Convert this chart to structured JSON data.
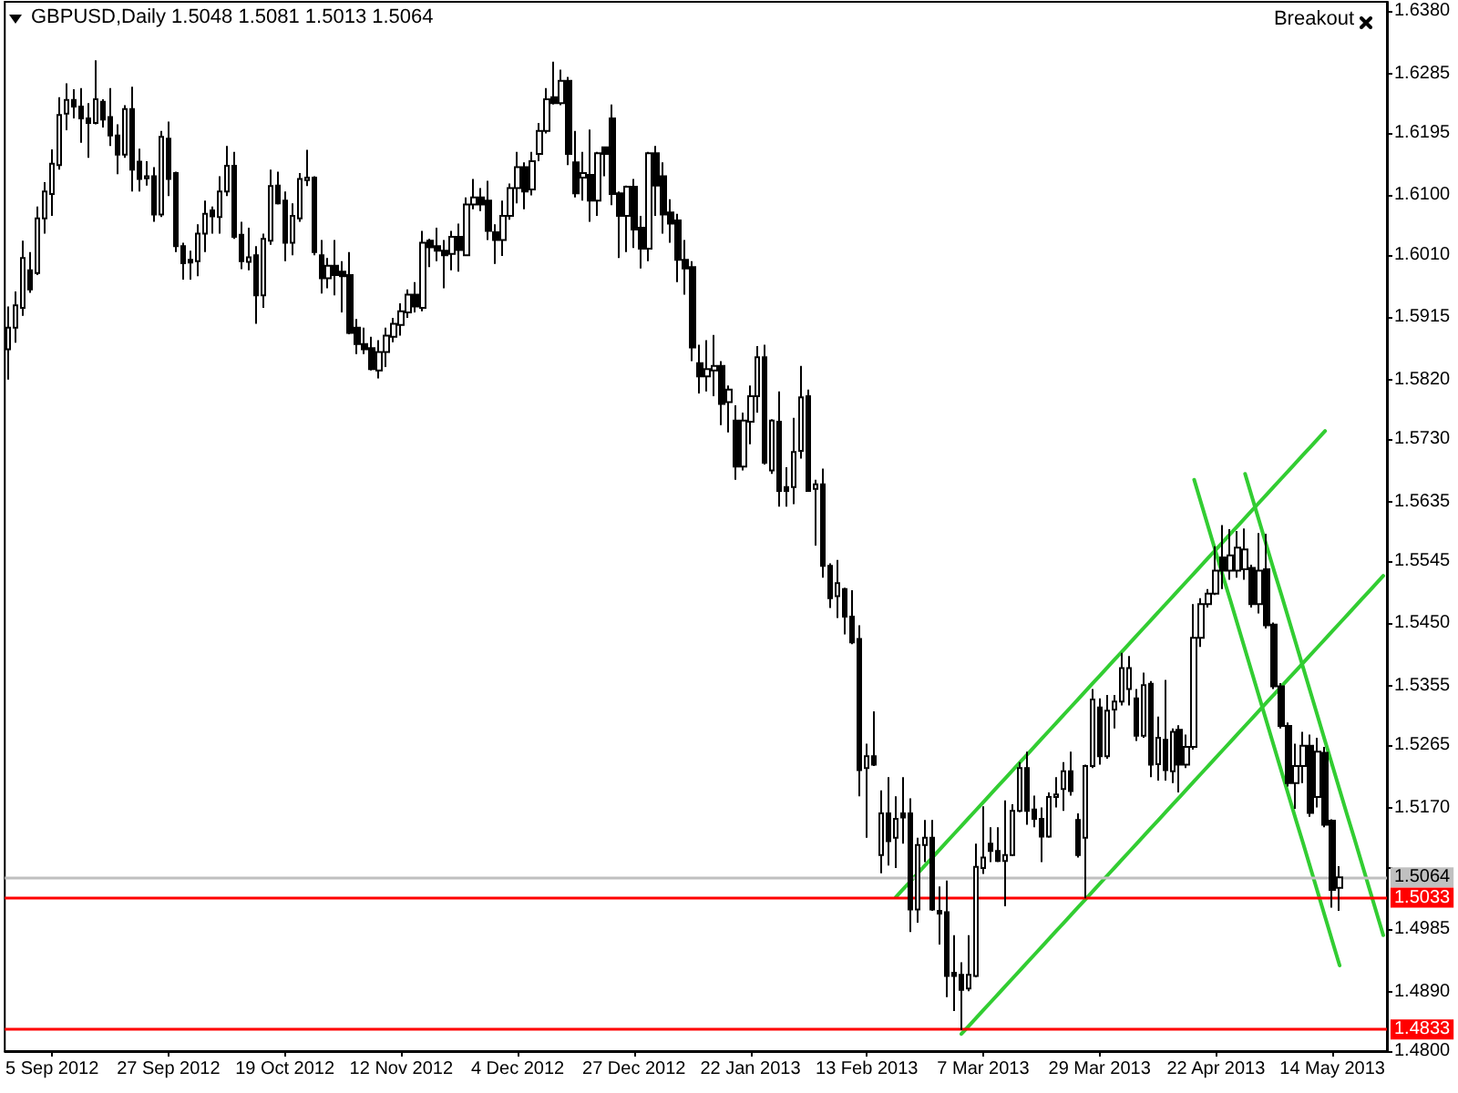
{
  "chart_data": {
    "type": "candlestick",
    "title": "GBPUSD,Daily 1.5048 1.5081 1.5013 1.5064",
    "annotations": [
      "Breakout"
    ],
    "categories": [
      null,
      null,
      null,
      null,
      null,
      null,
      "5 Sep 2012",
      null,
      null,
      null,
      null,
      null,
      null,
      null,
      null,
      null,
      null,
      null,
      null,
      null,
      null,
      null,
      "27 Sep 2012",
      null,
      null,
      null,
      null,
      null,
      null,
      null,
      null,
      null,
      null,
      null,
      null,
      null,
      null,
      null,
      "19 Oct 2012",
      null,
      null,
      null,
      null,
      null,
      null,
      null,
      null,
      null,
      null,
      null,
      null,
      null,
      null,
      null,
      "12 Nov 2012",
      null,
      null,
      null,
      null,
      null,
      null,
      null,
      null,
      null,
      null,
      null,
      null,
      null,
      null,
      null,
      "4 Dec 2012",
      null,
      null,
      null,
      null,
      null,
      null,
      null,
      null,
      null,
      null,
      null,
      null,
      null,
      null,
      null,
      "27 Dec 2012",
      null,
      null,
      null,
      null,
      null,
      null,
      null,
      null,
      null,
      null,
      null,
      null,
      null,
      null,
      null,
      "22 Jan 2013",
      null,
      null,
      null,
      null,
      null,
      null,
      null,
      null,
      null,
      null,
      null,
      null,
      null,
      null,
      null,
      "13 Feb 2013",
      null,
      null,
      null,
      null,
      null,
      null,
      null,
      null,
      null,
      null,
      null,
      null,
      null,
      null,
      null,
      "7 Mar 2013",
      null,
      null,
      null,
      null,
      null,
      null,
      null,
      null,
      null,
      null,
      null,
      null,
      null,
      null,
      null,
      "29 Mar 2013",
      null,
      null,
      null,
      null,
      null,
      null,
      null,
      null,
      null,
      null,
      null,
      null,
      null,
      null,
      null,
      "22 Apr 2013",
      null,
      null,
      null,
      null,
      null,
      null,
      null,
      null,
      null,
      null,
      null,
      null,
      null,
      null,
      null,
      "14 May 2013",
      null,
      null,
      null,
      null,
      null,
      null,
      null
    ],
    "series": [
      {
        "color": "#000000",
        "ohlc": [
          [
            1.5866,
            1.5931,
            1.582,
            1.5899
          ],
          [
            1.5899,
            1.5954,
            1.5876,
            1.5933
          ],
          [
            1.5929,
            1.6031,
            1.5917,
            1.6005
          ],
          [
            1.5986,
            1.6014,
            1.5952,
            1.5957
          ],
          [
            1.5982,
            1.6083,
            1.5979,
            1.6065
          ],
          [
            1.6065,
            1.612,
            1.6042,
            1.6106
          ],
          [
            1.6102,
            1.617,
            1.6069,
            1.6148
          ],
          [
            1.6146,
            1.6249,
            1.6139,
            1.6222
          ],
          [
            1.6224,
            1.627,
            1.6199,
            1.6245
          ],
          [
            1.6245,
            1.6261,
            1.6217,
            1.6235
          ],
          [
            1.6235,
            1.6263,
            1.618,
            1.6217
          ],
          [
            1.6217,
            1.624,
            1.6157,
            1.621
          ],
          [
            1.621,
            1.6305,
            1.6208,
            1.6246
          ],
          [
            1.6242,
            1.6246,
            1.6203,
            1.6215
          ],
          [
            1.6219,
            1.6263,
            1.6175,
            1.6191
          ],
          [
            1.6191,
            1.6208,
            1.6132,
            1.6162
          ],
          [
            1.6162,
            1.6237,
            1.6157,
            1.6231
          ],
          [
            1.6231,
            1.6265,
            1.6106,
            1.6139
          ],
          [
            1.6151,
            1.6171,
            1.6106,
            1.6125
          ],
          [
            1.6126,
            1.6152,
            1.6115,
            1.6129
          ],
          [
            1.6129,
            1.6143,
            1.606,
            1.6071
          ],
          [
            1.6071,
            1.6198,
            1.6067,
            1.6189
          ],
          [
            1.6186,
            1.6212,
            1.6099,
            1.6125
          ],
          [
            1.6134,
            1.6136,
            1.6014,
            1.6023
          ],
          [
            1.6023,
            1.6028,
            1.5972,
            1.5997
          ],
          [
            1.6002,
            1.6016,
            1.5972,
            1.5998
          ],
          [
            1.6,
            1.6056,
            1.5977,
            1.6042
          ],
          [
            1.6042,
            1.6092,
            1.6014,
            1.6072
          ],
          [
            1.6077,
            1.6083,
            1.6042,
            1.6068
          ],
          [
            1.6067,
            1.6129,
            1.6042,
            1.6106
          ],
          [
            1.6106,
            1.6175,
            1.6099,
            1.6145
          ],
          [
            1.6145,
            1.6166,
            1.6034,
            1.6037
          ],
          [
            1.604,
            1.606,
            1.5988,
            1.6
          ],
          [
            1.5999,
            1.6051,
            1.5986,
            1.6006
          ],
          [
            1.6009,
            1.6023,
            1.5905,
            1.5948
          ],
          [
            1.5948,
            1.6042,
            1.5929,
            1.6034
          ],
          [
            1.6031,
            1.6139,
            1.6025,
            1.6114
          ],
          [
            1.6115,
            1.6136,
            1.6086,
            1.6088
          ],
          [
            1.6092,
            1.6106,
            1.6,
            1.6028
          ],
          [
            1.6028,
            1.6088,
            1.6009,
            1.6069
          ],
          [
            1.6065,
            1.6134,
            1.606,
            1.6125
          ],
          [
            1.6123,
            1.6169,
            1.6114,
            1.6127
          ],
          [
            1.6127,
            1.6129,
            1.6009,
            1.6014
          ],
          [
            1.6009,
            1.6032,
            1.5951,
            1.5974
          ],
          [
            1.5974,
            1.6005,
            1.5959,
            1.5993
          ],
          [
            1.5993,
            1.6032,
            1.5948,
            1.5979
          ],
          [
            1.5984,
            1.6,
            1.5922,
            1.5977
          ],
          [
            1.5979,
            1.6014,
            1.5889,
            1.5891
          ],
          [
            1.5899,
            1.5912,
            1.5859,
            1.5874
          ],
          [
            1.5874,
            1.5899,
            1.5859,
            1.5866
          ],
          [
            1.5868,
            1.5885,
            1.5834,
            1.5836
          ],
          [
            1.5834,
            1.588,
            1.5822,
            1.5862
          ],
          [
            1.5862,
            1.5899,
            1.5839,
            1.5887
          ],
          [
            1.5885,
            1.5914,
            1.5877,
            1.5905
          ],
          [
            1.5903,
            1.5936,
            1.5887,
            1.5924
          ],
          [
            1.5922,
            1.5957,
            1.5914,
            1.5949
          ],
          [
            1.5949,
            1.5968,
            1.5922,
            1.5931
          ],
          [
            1.5929,
            1.6046,
            1.5924,
            1.6028
          ],
          [
            1.6031,
            1.6034,
            1.5991,
            1.6021
          ],
          [
            1.6023,
            1.6051,
            1.6,
            1.6016
          ],
          [
            1.6016,
            1.6032,
            1.5959,
            1.6009
          ],
          [
            1.6011,
            1.6046,
            1.5986,
            1.6037
          ],
          [
            1.6037,
            1.6057,
            1.5984,
            1.6017
          ],
          [
            1.6009,
            1.6097,
            1.6008,
            1.6086
          ],
          [
            1.6086,
            1.6125,
            1.6079,
            1.6097
          ],
          [
            1.6097,
            1.6111,
            1.6076,
            1.6086
          ],
          [
            1.6092,
            1.6122,
            1.6032,
            1.6046
          ],
          [
            1.6044,
            1.6056,
            1.5996,
            1.6032
          ],
          [
            1.6032,
            1.6092,
            1.6008,
            1.6069
          ],
          [
            1.6069,
            1.6118,
            1.6063,
            1.6111
          ],
          [
            1.6111,
            1.6166,
            1.6088,
            1.6143
          ],
          [
            1.6143,
            1.615,
            1.6079,
            1.6106
          ],
          [
            1.6109,
            1.6166,
            1.61,
            1.6152
          ],
          [
            1.6163,
            1.621,
            1.6152,
            1.6198
          ],
          [
            1.6198,
            1.6263,
            1.6194,
            1.6246
          ],
          [
            1.6249,
            1.6303,
            1.6238,
            1.624
          ],
          [
            1.624,
            1.6291,
            1.6237,
            1.6274
          ],
          [
            1.6274,
            1.628,
            1.6146,
            1.6163
          ],
          [
            1.615,
            1.6198,
            1.6097,
            1.6103
          ],
          [
            1.6127,
            1.6166,
            1.6092,
            1.6134
          ],
          [
            1.6131,
            1.62,
            1.606,
            1.6092
          ],
          [
            1.6092,
            1.6166,
            1.6069,
            1.6164
          ],
          [
            1.6173,
            1.6173,
            1.6129,
            1.6163
          ],
          [
            1.6217,
            1.6238,
            1.6085,
            1.6102
          ],
          [
            1.6103,
            1.6106,
            1.6005,
            1.6069
          ],
          [
            1.6069,
            1.6115,
            1.6014,
            1.6113
          ],
          [
            1.6113,
            1.6125,
            1.602,
            1.6048
          ],
          [
            1.6051,
            1.6069,
            1.5989,
            1.6019
          ],
          [
            1.6019,
            1.6166,
            1.6,
            1.6164
          ],
          [
            1.6164,
            1.6175,
            1.6069,
            1.6115
          ],
          [
            1.6129,
            1.615,
            1.6042,
            1.6071
          ],
          [
            1.6074,
            1.6094,
            1.6028,
            1.6057
          ],
          [
            1.6062,
            1.6072,
            1.5968,
            1.6002
          ],
          [
            1.6002,
            1.6032,
            1.5949,
            1.5989
          ],
          [
            1.5991,
            1.6,
            1.5848,
            1.5869
          ],
          [
            1.5845,
            1.5873,
            1.5799,
            1.5825
          ],
          [
            1.5825,
            1.588,
            1.5802,
            1.5836
          ],
          [
            1.5834,
            1.5888,
            1.5795,
            1.5841
          ],
          [
            1.5841,
            1.5848,
            1.5751,
            1.5783
          ],
          [
            1.5786,
            1.5811,
            1.574,
            1.5805
          ],
          [
            1.5758,
            1.5781,
            1.5668,
            1.5688
          ],
          [
            1.5688,
            1.577,
            1.5682,
            1.5758
          ],
          [
            1.5756,
            1.5811,
            1.5722,
            1.5795
          ],
          [
            1.5795,
            1.5871,
            1.577,
            1.5854
          ],
          [
            1.5854,
            1.5873,
            1.5691,
            1.5694
          ],
          [
            1.5682,
            1.576,
            1.5677,
            1.5758
          ],
          [
            1.5756,
            1.5802,
            1.5627,
            1.5651
          ],
          [
            1.5657,
            1.5687,
            1.5627,
            1.5651
          ],
          [
            1.5657,
            1.5762,
            1.5631,
            1.571
          ],
          [
            1.5712,
            1.5841,
            1.57,
            1.5793
          ],
          [
            1.5795,
            1.5805,
            1.565,
            1.5651
          ],
          [
            1.5654,
            1.5668,
            1.5568,
            1.5661
          ],
          [
            1.5661,
            1.5685,
            1.5519,
            1.5537
          ],
          [
            1.5537,
            1.5541,
            1.5473,
            1.5488
          ],
          [
            1.5491,
            1.5546,
            1.5458,
            1.5511
          ],
          [
            1.5502,
            1.5504,
            1.5433,
            1.546
          ],
          [
            1.546,
            1.55,
            1.5418,
            1.5421
          ],
          [
            1.5426,
            1.5447,
            1.5187,
            1.5227
          ],
          [
            1.523,
            1.5267,
            1.5124,
            1.5248
          ],
          [
            1.5248,
            1.5316,
            1.5233,
            1.5235
          ],
          [
            1.5098,
            1.5196,
            1.507,
            1.5161
          ],
          [
            1.5161,
            1.5216,
            1.5082,
            1.5119
          ],
          [
            1.5124,
            1.5187,
            1.5078,
            1.5153
          ],
          [
            1.5161,
            1.5216,
            1.5115,
            1.5155
          ],
          [
            1.5161,
            1.5184,
            1.4981,
            1.5015
          ],
          [
            1.5015,
            1.5124,
            1.4995,
            1.5113
          ],
          [
            1.5113,
            1.5151,
            1.5087,
            1.5124
          ],
          [
            1.5124,
            1.5151,
            1.5013,
            1.5015
          ],
          [
            1.5013,
            1.505,
            1.4962,
            1.5009
          ],
          [
            1.5011,
            1.5059,
            1.4882,
            1.4914
          ],
          [
            1.4919,
            1.4976,
            1.4861,
            1.4914
          ],
          [
            1.4916,
            1.4935,
            1.4832,
            1.4893
          ],
          [
            1.4895,
            1.4976,
            1.4891,
            1.4916
          ],
          [
            1.4914,
            1.5115,
            1.4912,
            1.508
          ],
          [
            1.5078,
            1.5172,
            1.5069,
            1.5094
          ],
          [
            1.5115,
            1.514,
            1.5087,
            1.5104
          ],
          [
            1.5104,
            1.514,
            1.5087,
            1.5089
          ],
          [
            1.5089,
            1.5181,
            1.502,
            1.5098
          ],
          [
            1.5098,
            1.5175,
            1.5096,
            1.5165
          ],
          [
            1.5165,
            1.5239,
            1.5163,
            1.523
          ],
          [
            1.523,
            1.5255,
            1.5144,
            1.5165
          ],
          [
            1.5167,
            1.5188,
            1.514,
            1.5153
          ],
          [
            1.5153,
            1.517,
            1.5087,
            1.5126
          ],
          [
            1.5126,
            1.5193,
            1.5124,
            1.5186
          ],
          [
            1.5186,
            1.5216,
            1.517,
            1.519
          ],
          [
            1.5198,
            1.5239,
            1.5165,
            1.5225
          ],
          [
            1.5225,
            1.5255,
            1.5188,
            1.5195
          ],
          [
            1.5151,
            1.5161,
            1.5094,
            1.5098
          ],
          [
            1.5124,
            1.5235,
            1.5032,
            1.5233
          ],
          [
            1.5233,
            1.535,
            1.523,
            1.5334
          ],
          [
            1.5322,
            1.5336,
            1.5235,
            1.5248
          ],
          [
            1.5248,
            1.5341,
            1.5244,
            1.5317
          ],
          [
            1.5319,
            1.5341,
            1.529,
            1.5331
          ],
          [
            1.5331,
            1.5405,
            1.5325,
            1.5382
          ],
          [
            1.535,
            1.54,
            1.5325,
            1.5382
          ],
          [
            1.5336,
            1.535,
            1.5271,
            1.5279
          ],
          [
            1.5279,
            1.5375,
            1.5276,
            1.5356
          ],
          [
            1.5358,
            1.5362,
            1.5216,
            1.5235
          ],
          [
            1.5236,
            1.5308,
            1.5211,
            1.5276
          ],
          [
            1.5273,
            1.5364,
            1.5211,
            1.5227
          ],
          [
            1.5225,
            1.529,
            1.5207,
            1.5285
          ],
          [
            1.5288,
            1.5295,
            1.5193,
            1.5235
          ],
          [
            1.5235,
            1.5281,
            1.523,
            1.5262
          ],
          [
            1.5262,
            1.5479,
            1.5258,
            1.5428
          ],
          [
            1.5428,
            1.5488,
            1.5414,
            1.5479
          ],
          [
            1.5479,
            1.5502,
            1.5474,
            1.5495
          ],
          [
            1.5495,
            1.5567,
            1.5493,
            1.553
          ],
          [
            1.555,
            1.5599,
            1.5502,
            1.553
          ],
          [
            1.553,
            1.5593,
            1.5516,
            1.5553
          ],
          [
            1.553,
            1.559,
            1.5519,
            1.5565
          ],
          [
            1.5532,
            1.5594,
            1.5516,
            1.5562
          ],
          [
            1.5534,
            1.5539,
            1.5474,
            1.5479
          ],
          [
            1.5479,
            1.5587,
            1.5465,
            1.553
          ],
          [
            1.5532,
            1.5586,
            1.5442,
            1.5447
          ],
          [
            1.5448,
            1.5451,
            1.535,
            1.5354
          ],
          [
            1.5354,
            1.5359,
            1.529,
            1.5294
          ],
          [
            1.5294,
            1.5299,
            1.5202,
            1.5207
          ],
          [
            1.5207,
            1.5267,
            1.5168,
            1.5233
          ],
          [
            1.5233,
            1.5285,
            1.5207,
            1.5264
          ],
          [
            1.5264,
            1.5281,
            1.5156,
            1.5162
          ],
          [
            1.5186,
            1.5276,
            1.517,
            1.5255
          ],
          [
            1.5253,
            1.5262,
            1.514,
            1.5144
          ],
          [
            1.515,
            1.5152,
            1.5018,
            1.5045
          ],
          [
            1.5048,
            1.5081,
            1.5013,
            1.5064
          ],
          null,
          null,
          null,
          null,
          null,
          null
        ]
      },
      {
        "type": "line",
        "color": "#32cd32",
        "values": [
          null,
          null,
          null,
          null,
          null,
          null,
          null,
          null,
          null,
          null,
          null,
          null,
          null,
          null,
          null,
          null,
          null,
          null,
          null,
          null,
          null,
          null,
          null,
          null,
          null,
          null,
          null,
          null,
          null,
          null,
          null,
          null,
          null,
          null,
          null,
          null,
          null,
          null,
          null,
          null,
          null,
          null,
          null,
          null,
          null,
          null,
          null,
          null,
          null,
          null,
          null,
          null,
          null,
          null,
          null,
          null,
          null,
          null,
          null,
          null,
          null,
          null,
          null,
          null,
          null,
          null,
          null,
          null,
          null,
          null,
          null,
          null,
          null,
          null,
          null,
          null,
          null,
          null,
          null,
          null,
          null,
          null,
          null,
          null,
          null,
          null,
          null,
          null,
          null,
          null,
          null,
          null,
          null,
          null,
          null,
          null,
          null,
          null,
          null,
          null,
          null,
          null,
          null,
          null,
          null,
          null,
          null,
          null,
          null,
          null,
          null,
          null,
          null,
          null,
          null,
          null,
          null,
          null,
          null,
          null,
          null,
          null,
          1.5034,
          1.5046,
          1.5058,
          1.507,
          1.5082,
          1.5094,
          1.5106,
          1.5118,
          1.513,
          1.5142,
          1.5154,
          1.5166,
          1.5178,
          1.519,
          1.5202,
          1.5214,
          1.5226,
          1.5238,
          1.525,
          1.5262,
          1.5274,
          1.5286,
          1.5298,
          1.531,
          1.5322,
          1.5334,
          1.5346,
          1.5358,
          1.537,
          1.5382,
          1.5394,
          1.5406,
          1.5418,
          1.543,
          1.5442,
          1.5454,
          1.5466,
          1.5478,
          1.549,
          1.5502,
          1.5514,
          1.5526,
          1.5538,
          1.555,
          1.5562,
          1.5574,
          1.5586,
          1.5598,
          1.561,
          1.5622,
          1.5634,
          1.5646,
          1.5658,
          1.567,
          1.5682,
          1.5694,
          1.5706,
          1.5718,
          1.573,
          1.5742,
          null,
          null,
          null,
          null,
          null,
          null,
          null,
          null
        ]
      },
      {
        "type": "line",
        "color": "#32cd32",
        "values": [
          null,
          null,
          null,
          null,
          null,
          null,
          null,
          null,
          null,
          null,
          null,
          null,
          null,
          null,
          null,
          null,
          null,
          null,
          null,
          null,
          null,
          null,
          null,
          null,
          null,
          null,
          null,
          null,
          null,
          null,
          null,
          null,
          null,
          null,
          null,
          null,
          null,
          null,
          null,
          null,
          null,
          null,
          null,
          null,
          null,
          null,
          null,
          null,
          null,
          null,
          null,
          null,
          null,
          null,
          null,
          null,
          null,
          null,
          null,
          null,
          null,
          null,
          null,
          null,
          null,
          null,
          null,
          null,
          null,
          null,
          null,
          null,
          null,
          null,
          null,
          null,
          null,
          null,
          null,
          null,
          null,
          null,
          null,
          null,
          null,
          null,
          null,
          null,
          null,
          null,
          null,
          null,
          null,
          null,
          null,
          null,
          null,
          null,
          null,
          null,
          null,
          null,
          null,
          null,
          null,
          null,
          null,
          null,
          null,
          null,
          null,
          null,
          null,
          null,
          null,
          null,
          null,
          null,
          null,
          null,
          null,
          null,
          null,
          null,
          null,
          null,
          null,
          null,
          null,
          null,
          null,
          1.4826,
          1.4838,
          1.485,
          1.4862,
          1.4874,
          1.4886,
          1.4898,
          1.491,
          1.4922,
          1.4934,
          1.4946,
          1.4958,
          1.497,
          1.4982,
          1.4994,
          1.5006,
          1.5018,
          1.503,
          1.5042,
          1.5054,
          1.5066,
          1.5078,
          1.509,
          1.5102,
          1.5114,
          1.5126,
          1.5138,
          1.515,
          1.5162,
          1.5174,
          1.5186,
          1.5198,
          1.521,
          1.5222,
          1.5234,
          1.5246,
          1.5258,
          1.527,
          1.5282,
          1.5294,
          1.5306,
          1.5318,
          1.533,
          1.5342,
          1.5354,
          1.5366,
          1.5378,
          1.539,
          1.5402,
          1.5414,
          1.5426,
          1.5438,
          1.545,
          1.5462,
          1.5474,
          1.5486,
          1.5498,
          1.551,
          1.5522
        ]
      },
      {
        "type": "line",
        "color": "#32cd32",
        "values": [
          null,
          null,
          null,
          null,
          null,
          null,
          null,
          null,
          null,
          null,
          null,
          null,
          null,
          null,
          null,
          null,
          null,
          null,
          null,
          null,
          null,
          null,
          null,
          null,
          null,
          null,
          null,
          null,
          null,
          null,
          null,
          null,
          null,
          null,
          null,
          null,
          null,
          null,
          null,
          null,
          null,
          null,
          null,
          null,
          null,
          null,
          null,
          null,
          null,
          null,
          null,
          null,
          null,
          null,
          null,
          null,
          null,
          null,
          null,
          null,
          null,
          null,
          null,
          null,
          null,
          null,
          null,
          null,
          null,
          null,
          null,
          null,
          null,
          null,
          null,
          null,
          null,
          null,
          null,
          null,
          null,
          null,
          null,
          null,
          null,
          null,
          null,
          null,
          null,
          null,
          null,
          null,
          null,
          null,
          null,
          null,
          null,
          null,
          null,
          null,
          null,
          null,
          null,
          null,
          null,
          null,
          null,
          null,
          null,
          null,
          null,
          null,
          null,
          null,
          null,
          null,
          null,
          null,
          null,
          null,
          null,
          null,
          null,
          null,
          null,
          null,
          null,
          null,
          null,
          null,
          null,
          null,
          null,
          null,
          null,
          null,
          null,
          null,
          null,
          null,
          null,
          null,
          null,
          null,
          null,
          null,
          null,
          null,
          null,
          null,
          null,
          null,
          null,
          null,
          null,
          null,
          null,
          null,
          null,
          null,
          null,
          null,
          null,
          1.5668,
          1.5631,
          1.5594,
          1.5557,
          1.552,
          1.5484,
          1.5447,
          1.541,
          1.5373,
          1.5336,
          1.5299,
          1.5262,
          1.5225,
          1.5188,
          1.5151,
          1.5115,
          1.5078,
          1.5041,
          1.5004,
          1.4967,
          1.493,
          null,
          null,
          null,
          null,
          null,
          null
        ]
      },
      {
        "type": "line",
        "color": "#32cd32",
        "values": [
          null,
          null,
          null,
          null,
          null,
          null,
          null,
          null,
          null,
          null,
          null,
          null,
          null,
          null,
          null,
          null,
          null,
          null,
          null,
          null,
          null,
          null,
          null,
          null,
          null,
          null,
          null,
          null,
          null,
          null,
          null,
          null,
          null,
          null,
          null,
          null,
          null,
          null,
          null,
          null,
          null,
          null,
          null,
          null,
          null,
          null,
          null,
          null,
          null,
          null,
          null,
          null,
          null,
          null,
          null,
          null,
          null,
          null,
          null,
          null,
          null,
          null,
          null,
          null,
          null,
          null,
          null,
          null,
          null,
          null,
          null,
          null,
          null,
          null,
          null,
          null,
          null,
          null,
          null,
          null,
          null,
          null,
          null,
          null,
          null,
          null,
          null,
          null,
          null,
          null,
          null,
          null,
          null,
          null,
          null,
          null,
          null,
          null,
          null,
          null,
          null,
          null,
          null,
          null,
          null,
          null,
          null,
          null,
          null,
          null,
          null,
          null,
          null,
          null,
          null,
          null,
          null,
          null,
          null,
          null,
          null,
          null,
          null,
          null,
          null,
          null,
          null,
          null,
          null,
          null,
          null,
          null,
          null,
          null,
          null,
          null,
          null,
          null,
          null,
          null,
          null,
          null,
          null,
          null,
          null,
          null,
          null,
          null,
          null,
          null,
          null,
          null,
          null,
          null,
          null,
          null,
          null,
          null,
          null,
          null,
          null,
          null,
          null,
          null,
          null,
          null,
          null,
          null,
          null,
          null,
          1.5677,
          1.564,
          1.5603,
          1.5566,
          1.5529,
          1.5493,
          1.5456,
          1.5419,
          1.5382,
          1.5345,
          1.5308,
          1.5271,
          1.5234,
          1.5197,
          1.516,
          1.5124,
          1.5087,
          1.505,
          1.5013,
          1.4976
        ]
      }
    ],
    "marker": "none",
    "ylim": [
      1.48,
      1.6394
    ],
    "yticks": [
      {
        "value": 1.638,
        "label": "1.6380"
      },
      {
        "value": 1.6285,
        "label": "1.6285"
      },
      {
        "value": 1.6195,
        "label": "1.6195"
      },
      {
        "value": 1.61,
        "label": "1.6100"
      },
      {
        "value": 1.601,
        "label": "1.6010"
      },
      {
        "value": 1.5915,
        "label": "1.5915"
      },
      {
        "value": 1.582,
        "label": "1.5820"
      },
      {
        "value": 1.573,
        "label": "1.5730"
      },
      {
        "value": 1.5635,
        "label": "1.5635"
      },
      {
        "value": 1.5545,
        "label": "1.5545"
      },
      {
        "value": 1.545,
        "label": "1.5450"
      },
      {
        "value": 1.5355,
        "label": "1.5355"
      },
      {
        "value": 1.5265,
        "label": "1.5265"
      },
      {
        "value": 1.517,
        "label": "1.5170"
      },
      {
        "value": 1.508,
        "label": null
      },
      {
        "value": 1.4985,
        "label": "1.4985"
      },
      {
        "value": 1.489,
        "label": "1.4890"
      },
      {
        "value": 1.48,
        "label": "1.4800"
      }
    ],
    "ref_lines": [
      {
        "axis": "y",
        "value": 1.5064,
        "label": "1.5064",
        "color": "#c0c0c0"
      },
      {
        "axis": "y",
        "value": 1.5033,
        "label": "1.5033",
        "color": "#ff0000"
      },
      {
        "axis": "y",
        "value": 1.4833,
        "label": "1.4833",
        "color": "#ff0000"
      }
    ],
    "grid": false
  }
}
